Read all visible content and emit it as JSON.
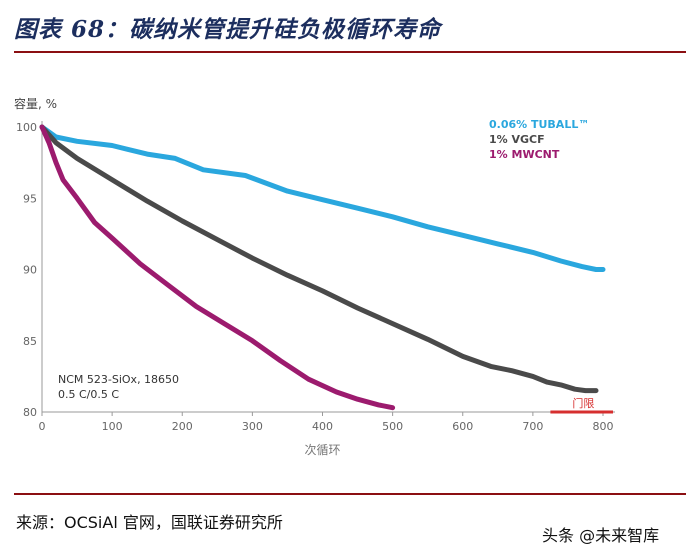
{
  "figure": {
    "title": "图表 68：碳纳米管提升硅负极循环寿命",
    "source": "来源：OCSiAl 官网，国联证券研究所"
  },
  "watermark": {
    "text": "头条 @未来智库",
    "icon": "share-icon"
  },
  "chart_data": {
    "type": "line",
    "title": "",
    "ylabel": "容量, %",
    "xlabel": "次循环",
    "xlim": [
      0,
      800
    ],
    "ylim": [
      80,
      100
    ],
    "xticks": [
      0,
      100,
      200,
      300,
      400,
      500,
      600,
      700,
      800
    ],
    "yticks": [
      80,
      85,
      90,
      95,
      100
    ],
    "grid": false,
    "legend_position": "top-right",
    "annotation": [
      "NCM 523-SiOx, 18650",
      "0.5 C/0.5 C"
    ],
    "threshold": {
      "label": "门限",
      "value": 80,
      "x_range": [
        725,
        800
      ],
      "color": "#d62e2e"
    },
    "series": [
      {
        "name": "0.06% TUBALL™",
        "color": "#2aa7de",
        "x": [
          0,
          20,
          50,
          100,
          150,
          190,
          230,
          290,
          350,
          400,
          450,
          500,
          550,
          600,
          650,
          700,
          740,
          770,
          790,
          800
        ],
        "y": [
          100,
          99.3,
          99.0,
          98.7,
          98.1,
          97.8,
          97.0,
          96.6,
          95.5,
          94.9,
          94.3,
          93.7,
          93.0,
          92.4,
          91.8,
          91.2,
          90.6,
          90.2,
          90.0,
          90.0
        ]
      },
      {
        "name": "1% VGCF",
        "color": "#4a4a4a",
        "x": [
          0,
          20,
          50,
          100,
          150,
          200,
          250,
          300,
          350,
          400,
          450,
          500,
          550,
          600,
          640,
          670,
          700,
          720,
          740,
          760,
          775,
          790
        ],
        "y": [
          100,
          98.9,
          97.8,
          96.3,
          94.8,
          93.4,
          92.1,
          90.8,
          89.6,
          88.5,
          87.3,
          86.2,
          85.1,
          83.9,
          83.2,
          82.9,
          82.5,
          82.1,
          81.9,
          81.6,
          81.5,
          81.5
        ]
      },
      {
        "name": "1% MWCNT",
        "color": "#9c1b6e",
        "x": [
          0,
          10,
          20,
          30,
          50,
          75,
          100,
          140,
          180,
          220,
          260,
          300,
          340,
          380,
          420,
          450,
          480,
          500
        ],
        "y": [
          100,
          98.9,
          97.5,
          96.3,
          95.0,
          93.3,
          92.2,
          90.4,
          88.9,
          87.4,
          86.2,
          85.0,
          83.6,
          82.3,
          81.4,
          80.9,
          80.5,
          80.3
        ]
      }
    ]
  }
}
